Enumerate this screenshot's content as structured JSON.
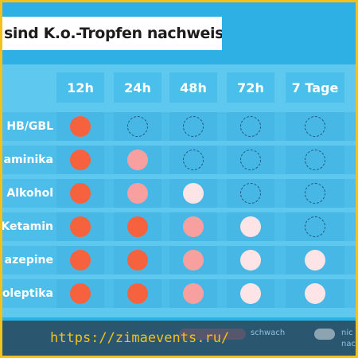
{
  "title": "sind K.o.-Tropfen nachweisbar",
  "columns": [
    "12h",
    "24h",
    "48h",
    "72h",
    "7 Tage"
  ],
  "rows": [
    {
      "label": "HB/GBL",
      "levels": [
        1,
        0,
        0,
        0,
        0
      ]
    },
    {
      "label": "aminika",
      "levels": [
        1,
        2,
        0,
        0,
        0
      ]
    },
    {
      "label": "Alkohol",
      "levels": [
        1,
        2,
        3,
        0,
        0
      ]
    },
    {
      "label": "Ketamin",
      "levels": [
        1,
        1,
        2,
        3,
        0
      ]
    },
    {
      "label": "azepine",
      "levels": [
        1,
        1,
        2,
        3,
        3
      ]
    },
    {
      "label": "oleptika",
      "levels": [
        1,
        1,
        2,
        3,
        3
      ]
    }
  ],
  "legend": {
    "strong_label": "",
    "weak_label": "schwach",
    "none_label_line1": "nic",
    "none_label_line2": "nac"
  },
  "watermark": "https://zimaevents.ru/",
  "colors": {
    "background": "#2fb0e4",
    "strong": "#f5623d",
    "medium": "#f8a0a0",
    "weak": "#fde4e6",
    "none_outline": "#24557a",
    "watermark": "#f2c21a"
  }
}
